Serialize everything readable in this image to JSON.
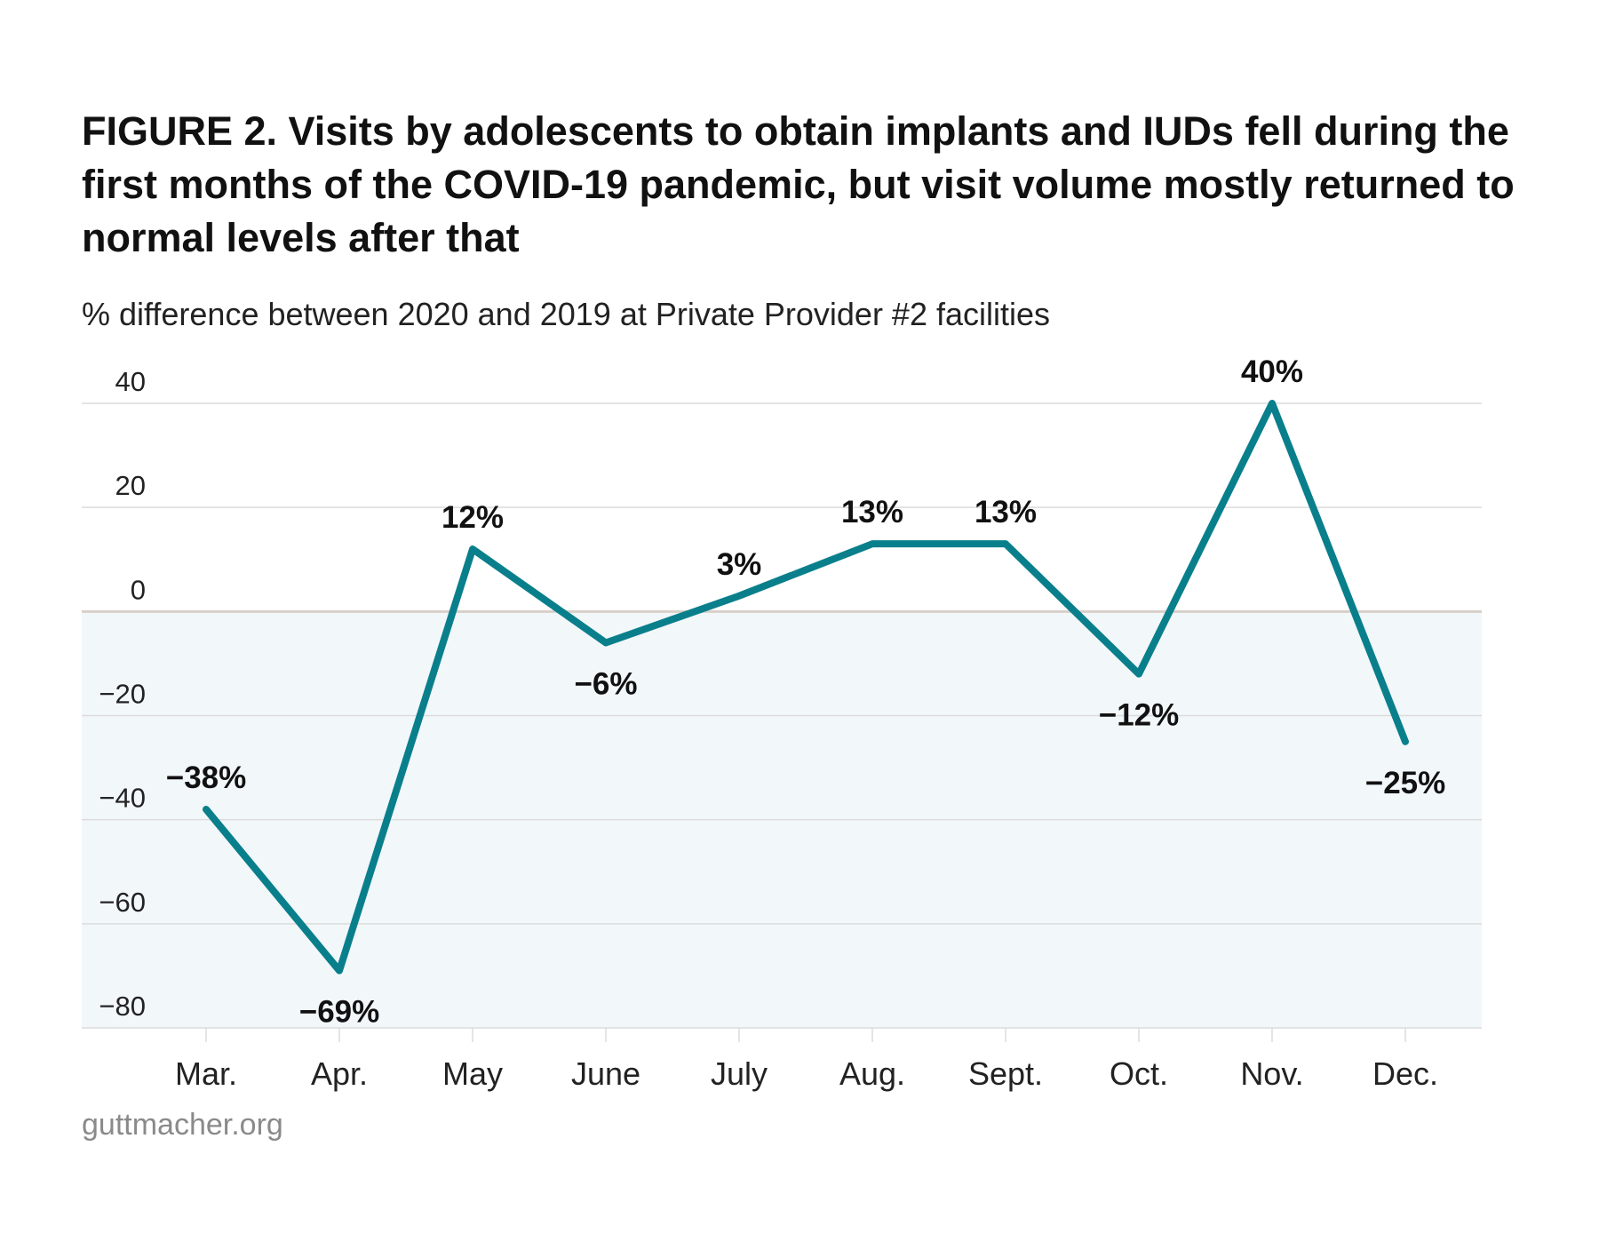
{
  "header": {
    "title": "FIGURE 2. Visits by adolescents to obtain implants and IUDs fell during the first months of the COVID-19 pandemic, but visit volume mostly returned to normal levels after that",
    "subtitle": "% difference between 2020 and 2019 at Private Provider #2 facilities"
  },
  "footer": {
    "source": "guttmacher.org"
  },
  "colors": {
    "line": "#0a7f8c",
    "negative_band": "#f2f7fa",
    "gridline": "#dcdcdc",
    "zero_line": "#d9cfc9",
    "text": "#111111"
  },
  "chart_data": {
    "type": "line",
    "categories": [
      "Mar.",
      "Apr.",
      "May",
      "June",
      "July",
      "Aug.",
      "Sept.",
      "Oct.",
      "Nov.",
      "Dec."
    ],
    "series": [
      {
        "values": [
          -38,
          -69,
          12,
          -6,
          3,
          13,
          13,
          -12,
          40,
          -25
        ]
      }
    ],
    "data_labels": [
      "−38%",
      "−69%",
      "12%",
      "−6%",
      "3%",
      "13%",
      "13%",
      "−12%",
      "40%",
      "−25%"
    ],
    "y_ticks": [
      40,
      20,
      0,
      -20,
      -40,
      -60,
      -80
    ],
    "y_tick_labels": [
      "40",
      "20",
      "0",
      "−20",
      "−40",
      "−60",
      "−80"
    ],
    "ylim": [
      -80,
      40
    ],
    "grid": true,
    "negative_region_shaded": true,
    "xlabel": "",
    "ylabel": ""
  }
}
